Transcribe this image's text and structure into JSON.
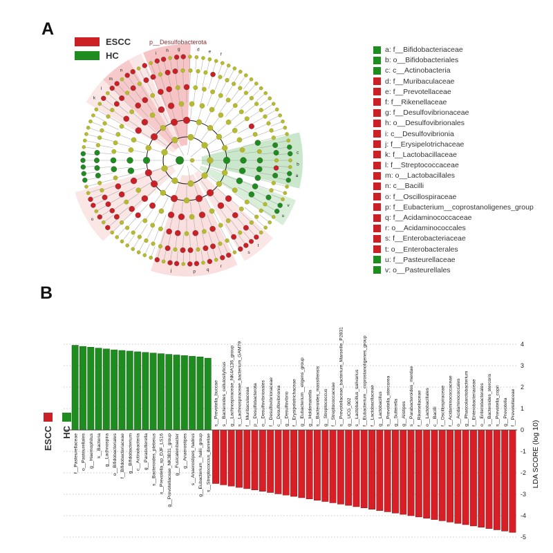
{
  "panelA": {
    "label": "A",
    "legend": [
      {
        "label": "ESCC",
        "color": "#cb2026"
      },
      {
        "label": "HC",
        "color": "#1e8c1e"
      }
    ],
    "wedge_label": "p__Desulfobacterota",
    "taxa": [
      {
        "key": "a",
        "label": "f__Bifidobacteriaceae",
        "color": "#1e8c1e"
      },
      {
        "key": "b",
        "label": "o__Bifidobacteriales",
        "color": "#1e8c1e"
      },
      {
        "key": "c",
        "label": "c__Actinobacteria",
        "color": "#1e8c1e"
      },
      {
        "key": "d",
        "label": "f__Muribaculaceae",
        "color": "#cb2026"
      },
      {
        "key": "e",
        "label": "f__Prevotellaceae",
        "color": "#cb2026"
      },
      {
        "key": "f",
        "label": "f__Rikenellaceae",
        "color": "#cb2026"
      },
      {
        "key": "g",
        "label": "f__Desulfovibrionaceae",
        "color": "#cb2026"
      },
      {
        "key": "h",
        "label": "o__Desulfovibrionales",
        "color": "#cb2026"
      },
      {
        "key": "i",
        "label": "c__Desulfovibrionia",
        "color": "#cb2026"
      },
      {
        "key": "j",
        "label": "f__Erysipelotrichaceae",
        "color": "#cb2026"
      },
      {
        "key": "k",
        "label": "f__Lactobacillaceae",
        "color": "#cb2026"
      },
      {
        "key": "l",
        "label": "f__Streptococcaceae",
        "color": "#cb2026"
      },
      {
        "key": "m",
        "label": "o__Lactobacillales",
        "color": "#cb2026"
      },
      {
        "key": "n",
        "label": "c__Bacilli",
        "color": "#cb2026"
      },
      {
        "key": "o",
        "label": "f__Oscillospiraceae",
        "color": "#cb2026"
      },
      {
        "key": "p",
        "label": "f__Eubacterium__coprostanoligenes_group",
        "color": "#cb2026"
      },
      {
        "key": "q",
        "label": "f__Acidaminococcaceae",
        "color": "#cb2026"
      },
      {
        "key": "r",
        "label": "o__Acidaminococcales",
        "color": "#cb2026"
      },
      {
        "key": "s",
        "label": "f__Enterobacteriaceae",
        "color": "#cb2026"
      },
      {
        "key": "t",
        "label": "o__Enterobacterales",
        "color": "#cb2026"
      },
      {
        "key": "u",
        "label": "f__Pasteurellaceae",
        "color": "#1e8c1e"
      },
      {
        "key": "v",
        "label": "o__Pasteurellales",
        "color": "#1e8c1e"
      }
    ]
  },
  "panelB": {
    "label": "B",
    "legend": [
      {
        "label": "ESCC",
        "color": "#cb2026"
      },
      {
        "label": "HC",
        "color": "#1e8c1e"
      }
    ]
  },
  "chart_data": {
    "type": "bar",
    "orientation": "vertical",
    "title": "",
    "ylabel": "LDA SCORE (log 10)",
    "ylim": [
      -5,
      4
    ],
    "yticks": [
      -5,
      -4,
      -3,
      -2,
      -1,
      0,
      1,
      2,
      3,
      4
    ],
    "grid": "dotted-horizontal",
    "series": [
      {
        "name": "HC",
        "color": "#1e8c1e",
        "labels": [
          "f__Pasteurellaceae",
          "o__Pasteurellales",
          "g__Haemophilus",
          "k__Bacteria",
          "g__Lachnospira",
          "o__Bifidobacteriales",
          "f__Bifidobacteriaceae",
          "g__Bifidobacterium",
          "c__Actinobacteria",
          "g__Parasutterella",
          "s__Bacteroides_plebeius",
          "s__Prevotella_sp_DJF_LS16",
          "g__Prevotellaceae_NK3B31_group",
          "g__Fusicatenibacter",
          "g__Anaerostipes",
          "s__Anaerostipes_hadrus",
          "g__Eubacterium__hallii_group",
          "s__Streptococcus_danieliae"
        ],
        "values": [
          3.95,
          3.9,
          3.86,
          3.82,
          3.78,
          3.74,
          3.71,
          3.68,
          3.65,
          3.62,
          3.59,
          3.56,
          3.53,
          3.5,
          3.47,
          3.44,
          3.41,
          3.35
        ]
      },
      {
        "name": "ESCC",
        "color": "#d71f25",
        "labels": [
          "s__Prevotella_buccae",
          "s__Bacteroides_cellulosilyticus",
          "g__Lachnospiraceae_NK4A136_group",
          "s__Lachnospiraceae_bacterium_GAM79",
          "f__Muribaculaceae",
          "p__Desulfobacterota",
          "o__Desulfovibrionales",
          "f__Desulfovibrionaceae",
          "c__Desulfovibrionia",
          "g__Desulfovibrio",
          "f__Erysipelotrichaceae",
          "g__Eubacterium__eligens_group",
          "g__Holdemanella",
          "s__Bacteroides_massiliensis",
          "g__Streptococcus",
          "f__Streptococcaceae",
          "s__Prevotellaceae_bacterium_Marseille_P2831",
          "g__UCG_002",
          "s__Lactobacillus_salivarius",
          "f__Eubacterium__coprostanoligenes_group",
          "f__Lactobacillaceae",
          "g__Lactobacillus",
          "s__Prevotella_stercorea",
          "g__Sutterella",
          "g__Alistipes",
          "s__Parabacteroides_merdae",
          "f__Rikenellaceae",
          "o__Lactobacillales",
          "c__Bacilli",
          "f__Oscillospiraceae",
          "f__Acidaminococcaceae",
          "o__Acidaminococcales",
          "g__Phascolarctobacterium",
          "f__Enterobacteriaceae",
          "o__Enterobacterales",
          "s__Bacteroides_stercoris",
          "s__Prevotella_copri",
          "g__Prevotella",
          "f__Prevotellaceae"
        ],
        "values": [
          -2.5,
          -2.56,
          -2.62,
          -2.68,
          -2.74,
          -2.8,
          -2.86,
          -2.92,
          -2.98,
          -3.04,
          -3.1,
          -3.16,
          -3.22,
          -3.28,
          -3.34,
          -3.4,
          -3.46,
          -3.52,
          -3.58,
          -3.64,
          -3.7,
          -3.76,
          -3.82,
          -3.88,
          -3.94,
          -4.0,
          -4.06,
          -4.12,
          -4.18,
          -4.24,
          -4.3,
          -4.36,
          -4.42,
          -4.48,
          -4.54,
          -4.6,
          -4.66,
          -4.72,
          -4.78
        ]
      }
    ]
  }
}
